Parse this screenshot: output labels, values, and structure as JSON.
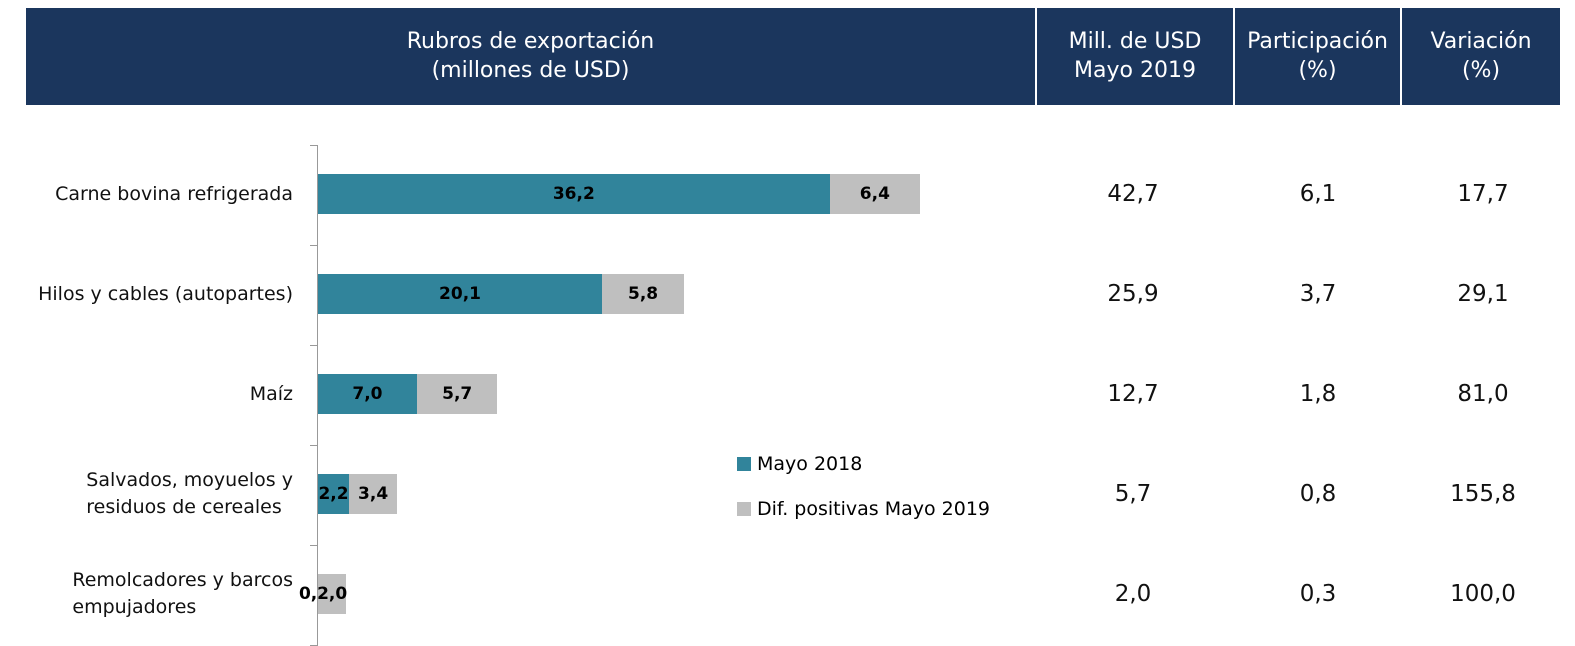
{
  "header": {
    "title": "Rubros de exportación\n(millones de USD)",
    "columns": [
      "Mill. de USD\nMayo 2019",
      "Participación\n(%)",
      "Variación\n(%)"
    ]
  },
  "chart_data": {
    "type": "bar",
    "orientation": "horizontal",
    "stacked": true,
    "categories": [
      "Carne bovina refrigerada",
      "Hilos y cables (autopartes)",
      "Maíz",
      "Salvados, moyuelos y\nresiduos de cereales",
      "Remolcadores y barcos\nempujadores"
    ],
    "xlim": [
      0,
      60
    ],
    "series": [
      {
        "name": "Mayo 2018",
        "color": "#31849b",
        "values": [
          36.2,
          20.1,
          7.0,
          2.2,
          0.0
        ],
        "value_labels": [
          "36,2",
          "20,1",
          "7,0",
          "2,2",
          "0,0"
        ]
      },
      {
        "name": "Dif. positivas Mayo 2019",
        "color": "#bfbfbf",
        "values": [
          6.4,
          5.8,
          5.7,
          3.4,
          2.0
        ],
        "value_labels": [
          "6,4",
          "5,8",
          "5,7",
          "3,4",
          "2,0"
        ]
      }
    ]
  },
  "table": {
    "rows": [
      [
        "42,7",
        "6,1",
        "17,7"
      ],
      [
        "25,9",
        "3,7",
        "29,1"
      ],
      [
        "12,7",
        "1,8",
        "81,0"
      ],
      [
        "5,7",
        "0,8",
        "155,8"
      ],
      [
        "2,0",
        "0,3",
        "100,0"
      ]
    ]
  }
}
